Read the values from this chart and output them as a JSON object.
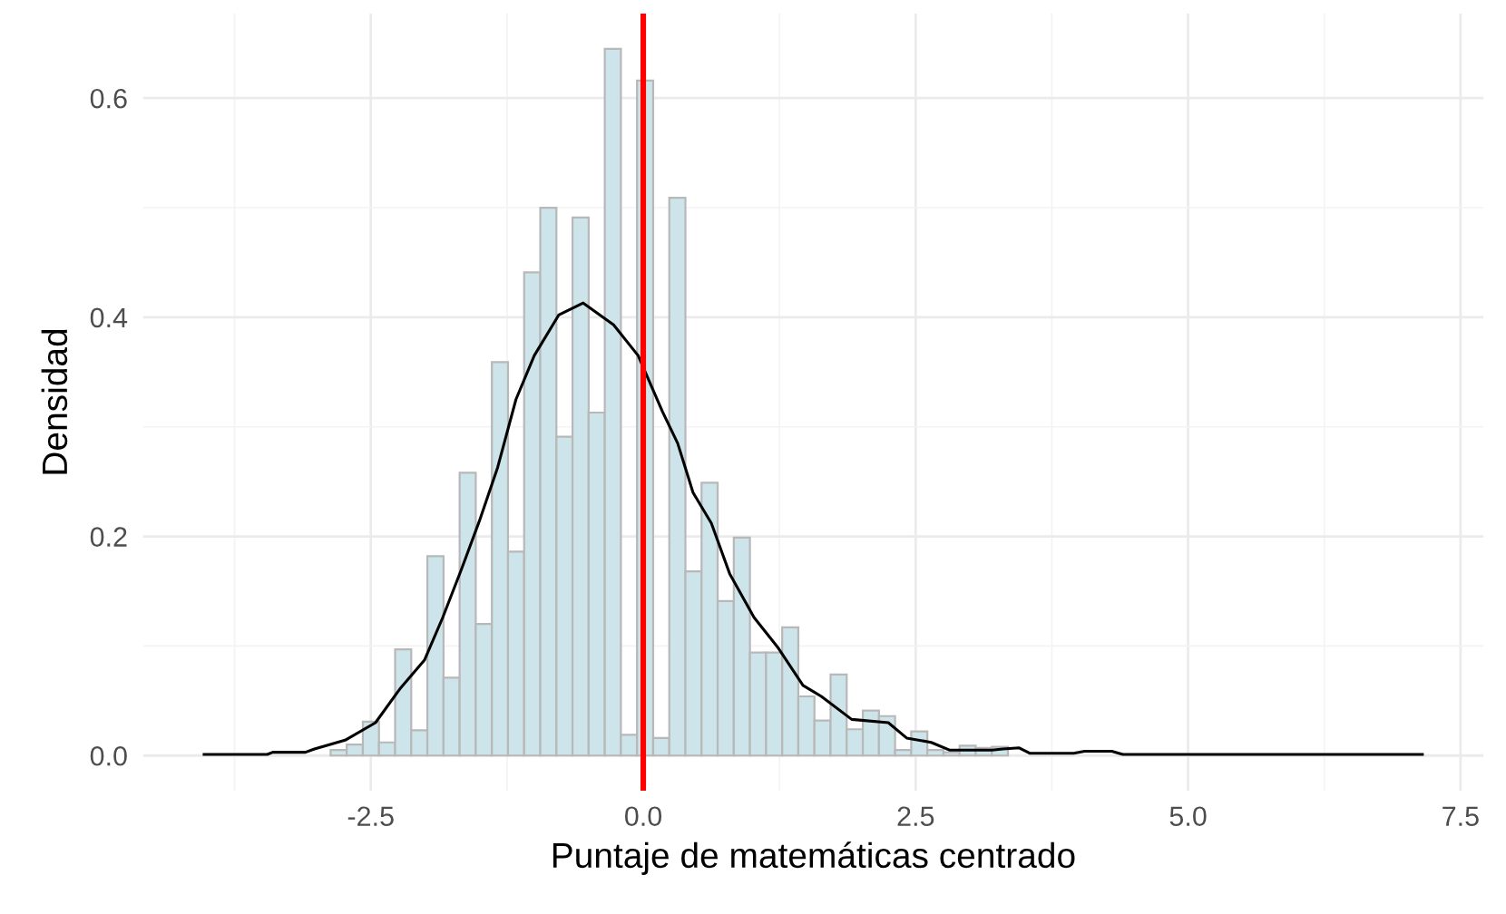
{
  "chart_data": {
    "type": "histogram",
    "xlabel": "Puntaje de matemáticas centrado",
    "ylabel": "Densidad",
    "bins": [
      -2.869,
      -2.721,
      -2.573,
      -2.425,
      -2.277,
      -2.129,
      -1.981,
      -1.833,
      -1.685,
      -1.537,
      -1.389,
      -1.241,
      -1.093,
      -0.945,
      -0.797,
      -0.649,
      -0.501,
      -0.353,
      -0.205,
      -0.057,
      0.091,
      0.239,
      0.387,
      0.535,
      0.683,
      0.831,
      0.979,
      1.127,
      1.275,
      1.423,
      1.571,
      1.719,
      1.867,
      2.015,
      2.163,
      2.311,
      2.459,
      2.607,
      2.755,
      2.903,
      3.051,
      3.199,
      3.347
    ],
    "values": [
      0.005,
      0.01,
      0.031,
      0.012,
      0.097,
      0.023,
      0.182,
      0.071,
      0.258,
      0.12,
      0.359,
      0.186,
      0.441,
      0.5,
      0.291,
      0.491,
      0.313,
      0.645,
      0.019,
      0.616,
      0.016,
      0.509,
      0.168,
      0.249,
      0.141,
      0.199,
      0.094,
      0.094,
      0.117,
      0.054,
      0.032,
      0.074,
      0.024,
      0.041,
      0.036,
      0.005,
      0.022,
      0.005,
      0.003,
      0.009,
      0.007,
      0.008
    ],
    "color": "#cde5ea",
    "series": [
      {
        "type": "line",
        "color": "#000000",
        "x": [
          -4.03,
          -3.45,
          -3.4,
          -3.1,
          -3.017,
          -2.736,
          -2.457,
          -2.232,
          -2.008,
          -1.84,
          -1.672,
          -1.504,
          -1.336,
          -1.168,
          -1.0,
          -0.776,
          -0.551,
          -0.272,
          -0.047,
          0.176,
          0.316,
          0.457,
          0.625,
          0.793,
          1.017,
          1.24,
          1.466,
          1.634,
          1.913,
          2.249,
          2.417,
          2.642,
          2.81,
          3.202,
          3.3,
          3.45,
          3.55,
          3.95,
          4.05,
          4.3,
          4.4,
          7.15
        ],
        "values": [
          0.001,
          0.001,
          0.003,
          0.003,
          0.006,
          0.014,
          0.03,
          0.061,
          0.087,
          0.126,
          0.169,
          0.214,
          0.263,
          0.325,
          0.365,
          0.402,
          0.413,
          0.393,
          0.365,
          0.314,
          0.285,
          0.24,
          0.212,
          0.166,
          0.126,
          0.098,
          0.064,
          0.054,
          0.033,
          0.03,
          0.016,
          0.012,
          0.005,
          0.005,
          0.006,
          0.007,
          0.002,
          0.002,
          0.004,
          0.004,
          0.001,
          0.001
        ]
      }
    ],
    "ref_lines": [
      {
        "axis": "x",
        "value": 0,
        "color": "#ff0000"
      }
    ],
    "xlim": [
      -4.59,
      7.71
    ],
    "ylim": [
      -0.032,
      0.677
    ],
    "xticks": [
      {
        "value": -2.5,
        "label": "-2.5"
      },
      {
        "value": 0,
        "label": "0.0"
      },
      {
        "value": 2.5,
        "label": "2.5"
      },
      {
        "value": 5,
        "label": "5.0"
      },
      {
        "value": 7.5,
        "label": "7.5"
      }
    ],
    "yticks": [
      {
        "value": 0,
        "label": "0.0"
      },
      {
        "value": 0.2,
        "label": "0.2"
      },
      {
        "value": 0.4,
        "label": "0.4"
      },
      {
        "value": 0.6,
        "label": "0.6"
      }
    ],
    "grid": true
  }
}
